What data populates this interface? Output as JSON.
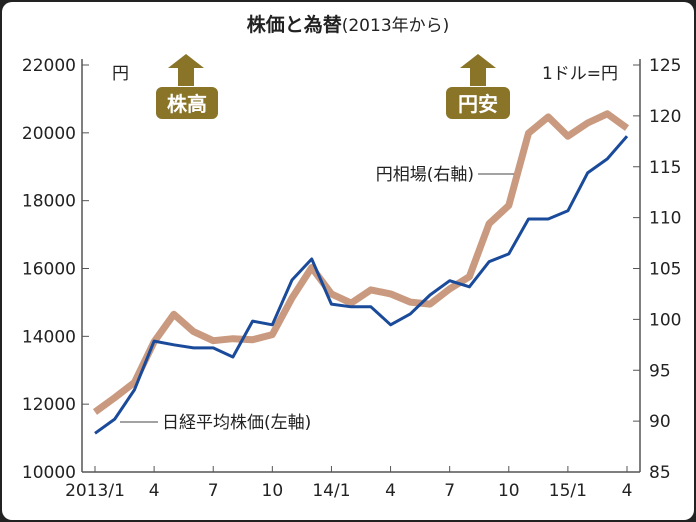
{
  "chart_data": {
    "type": "line",
    "title": "株価と為替",
    "subtitle": "(2013年から)",
    "x_tick_labels": [
      "2013/1",
      "4",
      "7",
      "10",
      "14/1",
      "4",
      "7",
      "10",
      "15/1",
      "4"
    ],
    "x": [
      "2013/1",
      "2013/2",
      "2013/3",
      "2013/4",
      "2013/5",
      "2013/6",
      "2013/7",
      "2013/8",
      "2013/9",
      "2013/10",
      "2013/11",
      "2013/12",
      "2014/1",
      "2014/2",
      "2014/3",
      "2014/4",
      "2014/5",
      "2014/6",
      "2014/7",
      "2014/8",
      "2014/9",
      "2014/10",
      "2014/11",
      "2014/12",
      "2015/1",
      "2015/2",
      "2015/3",
      "2015/4"
    ],
    "left_axis": {
      "unit": "円",
      "ylim": [
        10000,
        22000
      ],
      "ticks": [
        "10000",
        "12000",
        "14000",
        "16000",
        "18000",
        "20000",
        "22000"
      ]
    },
    "right_axis": {
      "unit": "1ドル=円",
      "ylim": [
        85,
        125
      ],
      "ticks": [
        "85",
        "90",
        "95",
        "100",
        "105",
        "110",
        "115",
        "120",
        "125"
      ]
    },
    "series": [
      {
        "name": "日経平均株価(左軸)",
        "axis": "left",
        "color": "#1a4a9a",
        "values": [
          11140,
          11560,
          12420,
          13860,
          13750,
          13660,
          13660,
          13390,
          14450,
          14340,
          15660,
          16280,
          14950,
          14870,
          14870,
          14340,
          14660,
          15220,
          15640,
          15460,
          16200,
          16430,
          17460,
          17460,
          17700,
          18820,
          19230,
          19900
        ]
      },
      {
        "name": "円相場(右軸)",
        "axis": "right",
        "color": "#c99a80",
        "values": [
          90.9,
          92.3,
          93.8,
          97.8,
          100.5,
          98.8,
          97.9,
          98.1,
          98.0,
          98.5,
          102.1,
          105.1,
          102.5,
          101.6,
          102.9,
          102.5,
          101.7,
          101.5,
          103.0,
          104.2,
          109.4,
          111.2,
          118.3,
          119.9,
          118.0,
          119.3,
          120.2,
          118.8
        ]
      }
    ],
    "annotations": [
      {
        "text": "株高",
        "icon": "arrow-up-icon",
        "color": "#8a7428"
      },
      {
        "text": "円安",
        "icon": "arrow-up-icon",
        "color": "#8a7428"
      }
    ],
    "grid": false,
    "legend": "inline labels"
  }
}
